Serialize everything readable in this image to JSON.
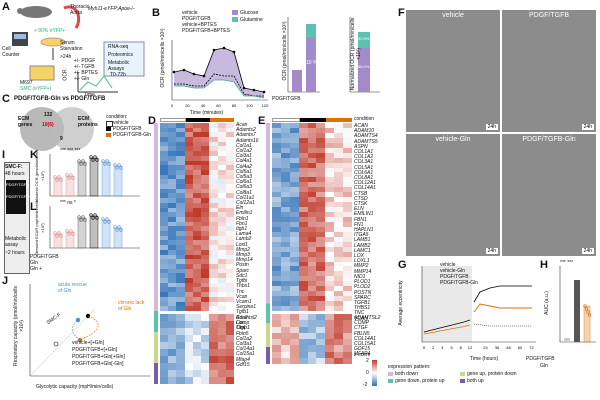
{
  "panels": {
    "A": {
      "letter": "A",
      "thoracic": "Thoracic",
      "aorta": "Aorta",
      "cell_counter": "Cell Counter",
      "pct_label": "> 90% eYFP+",
      "genotype": "Myh11-eYFP;Apoe-/-",
      "serum": "Serum Starvation",
      "time": ">24h",
      "conditions": [
        "+/- PDGF",
        "+/- TGFB",
        "+/- BPTES",
        "+/- Gln"
      ],
      "m697": "M697",
      "smc_label": "SMC (eYFP+)",
      "assays": [
        "RNA-seq",
        "Proteomics",
        "Metabolic Assays"
      ],
      "ocr_label": "OCR",
      "time_axis": "Time",
      "t72": "T0-72h"
    },
    "B": {
      "letter": "B",
      "legend": [
        "vehicle",
        "PDGF/TGFB",
        "vehicle+BPTES",
        "PDGF/TGFB+BPTES"
      ],
      "fill_legend": [
        "Glucose",
        "Glutamine"
      ],
      "xlabel": "Time (minutes)",
      "ylabel": "OCR (pmol/min/cells ×10³)",
      "bar_ylabel": "OCR (pmol/min/cells ×10³)",
      "norm_ylabel": "Normalized OCR (pmol/min/cells ×10³)",
      "pct1": "10 %",
      "pct2": "9.7 %",
      "pct3": "32.5%",
      "pct4": "88.0%",
      "pdgf_label": "PDGF/TGFB"
    },
    "C": {
      "letter": "C",
      "title": "PDGF/TGFB-Gln vs PDGF/TGFB",
      "left": "ECM genes",
      "right": "ECM proteins",
      "n_left": "132",
      "n_mid": "10(6)",
      "n_right": "9",
      "cond_title": "condition:",
      "conds": [
        "vehicle",
        "PDGF/TGFB",
        "PDGF/TGFB-Gln"
      ]
    },
    "D": {
      "letter": "D",
      "genes_top": [
        "Acan",
        "Adamts2",
        "Adamts7",
        "Adamts16",
        "Col1a1",
        "Col1a2",
        "Col3a1",
        "Col4a1",
        "Col4a2",
        "Col5a1",
        "Col5a3",
        "Col6a1",
        "Col6a3",
        "Col8a1",
        "Col11a1",
        "Col12a1",
        "Eln",
        "Emilin1",
        "Fbln1",
        "Fbn1",
        "Itgb1",
        "Lama4",
        "Lamb2",
        "Loxl1",
        "Mmp2",
        "Mmp3",
        "Mmp14",
        "Postn",
        "Sparc",
        "Sdc1",
        "Tgfbi",
        "Thbs1",
        "Tnc",
        "Vcan",
        "Vcam1",
        "Serpine1",
        "Tgfb1",
        "Ccn2",
        "Lox",
        "Timp1"
      ],
      "genes_bottom": [
        "Adamtsl2",
        "Comp",
        "Ctgf",
        "Fbln5",
        "Col1a2",
        "Col3a1",
        "Col14a1",
        "Col15a1",
        "Mfap4",
        "Gdf15"
      ]
    },
    "E": {
      "letter": "E",
      "cond": "condition",
      "genes_top": [
        "ACAN",
        "ADAM10",
        "ADAMTS4",
        "ADAMTS5",
        "ASPN",
        "COL1A1",
        "COL1A2",
        "COL3A1",
        "COL5A1",
        "COL6A1",
        "COL8A1",
        "COL12A1",
        "COL14A1",
        "CTSB",
        "CTSD",
        "CTSK",
        "ELN",
        "EMILIN1",
        "FBN1",
        "FN1",
        "HAPLN1",
        "ITGA5",
        "LAMB1",
        "LAMB2",
        "LAMC1",
        "LOX",
        "LOXL1",
        "MMP2",
        "MMP14",
        "NID1",
        "PLOD1",
        "PLOD2",
        "POSTN",
        "SPARC",
        "TGFB1",
        "THBS1",
        "TNC",
        "VCAN"
      ],
      "genes_bottom": [
        "ADAMTSL2",
        "COMP",
        "CTGF",
        "FBLN5",
        "COL14A1",
        "COL15A1",
        "GDF15",
        "MFAP4"
      ],
      "zlegend": "z-score",
      "z_ticks": [
        "2",
        "1",
        "0",
        "-1",
        "-2"
      ],
      "pattern_title": "expression pattern:",
      "patterns": [
        "both down",
        "gene down, protein up",
        "gene up, protein down",
        "both up"
      ]
    },
    "F": {
      "letter": "F",
      "labels": [
        "vehicle",
        "PDGF/TGFB",
        "vehicle-Gln",
        "PDGF/TGFB-Gln"
      ],
      "time": "24h"
    },
    "G": {
      "letter": "G",
      "legend": [
        "vehicle",
        "vehicle-Gln",
        "PDGF/TGFB",
        "PDGF/TGFB-Gln"
      ],
      "xlabel": "Time (hours)",
      "ylabel": "Average eccentricity",
      "x_ticks": [
        "0",
        "2",
        "4",
        "6",
        "8",
        "12",
        "24",
        "36",
        "48",
        "60",
        "72"
      ],
      "y_ticks": [
        "0.7",
        "0.8"
      ]
    },
    "H": {
      "letter": "H",
      "ylabel": "AUC (a.u.)",
      "stars": "*** ***",
      "y_ticks": [
        "0",
        "2",
        "4",
        "6",
        "8"
      ],
      "row_pdgf": "PDGF/TGFB",
      "row_gln": "Gln",
      "pdgf_vals": [
        "−",
        "+",
        "−",
        "+"
      ],
      "gln_vals": [
        "+",
        "+",
        "−",
        "−"
      ]
    },
    "I": {
      "letter": "I",
      "title": "SMC-F:",
      "sub": "48 hours",
      "steps": [
        "PDGF/TGFB",
        "PDGF/TGFB+Gln",
        "+Gln"
      ],
      "assay": "Metabolic assay",
      "assay_time": "~2 hours",
      "labels": [
        "PDGF/TGFB",
        "+Gln",
        "Gln"
      ]
    },
    "K": {
      "letter": "K",
      "ylabel": "Maximal OCR (pmol/min/cells ×10³)",
      "stars": "*** *** ***",
      "rows": [
        "PDGF/TGFB",
        "Gln",
        "Gln +"
      ],
      "row_vals": [
        [
          "−",
          "+",
          "−",
          "+"
        ],
        [
          "+",
          "+",
          "−",
          "−"
        ],
        [
          "−",
          "−",
          "+",
          "+"
        ]
      ]
    },
    "L": {
      "letter": "L",
      "ylabel": "Stressed ECAR (mpH/min/cells ×10³)",
      "stars": "*** ns *"
    },
    "J": {
      "letter": "J",
      "ylabel": "Respiratory capacity (pmol/min/cells ×10³)",
      "xlabel": "Glycolytic capacity (mpH/min/cells)",
      "annot1": "acute rescue of Gln",
      "annot2": "chronic lack of Gln",
      "smcf": "SMC-F",
      "legend": [
        "vehicle+[+Gln]",
        "PDGF/TGFB+[+Gln]",
        "PDGF/TGFB+Gln[+Gln]",
        "PDGF/TGFB+Gln[-Gln]"
      ]
    }
  },
  "colors": {
    "vehicle": "#000000",
    "pdgf": "#e07000",
    "gln": "#4a90d9",
    "purple": "#7b5aa6",
    "teal": "#3aa89a",
    "heat_red": "#c0392b",
    "heat_blue": "#2e6fb5"
  }
}
